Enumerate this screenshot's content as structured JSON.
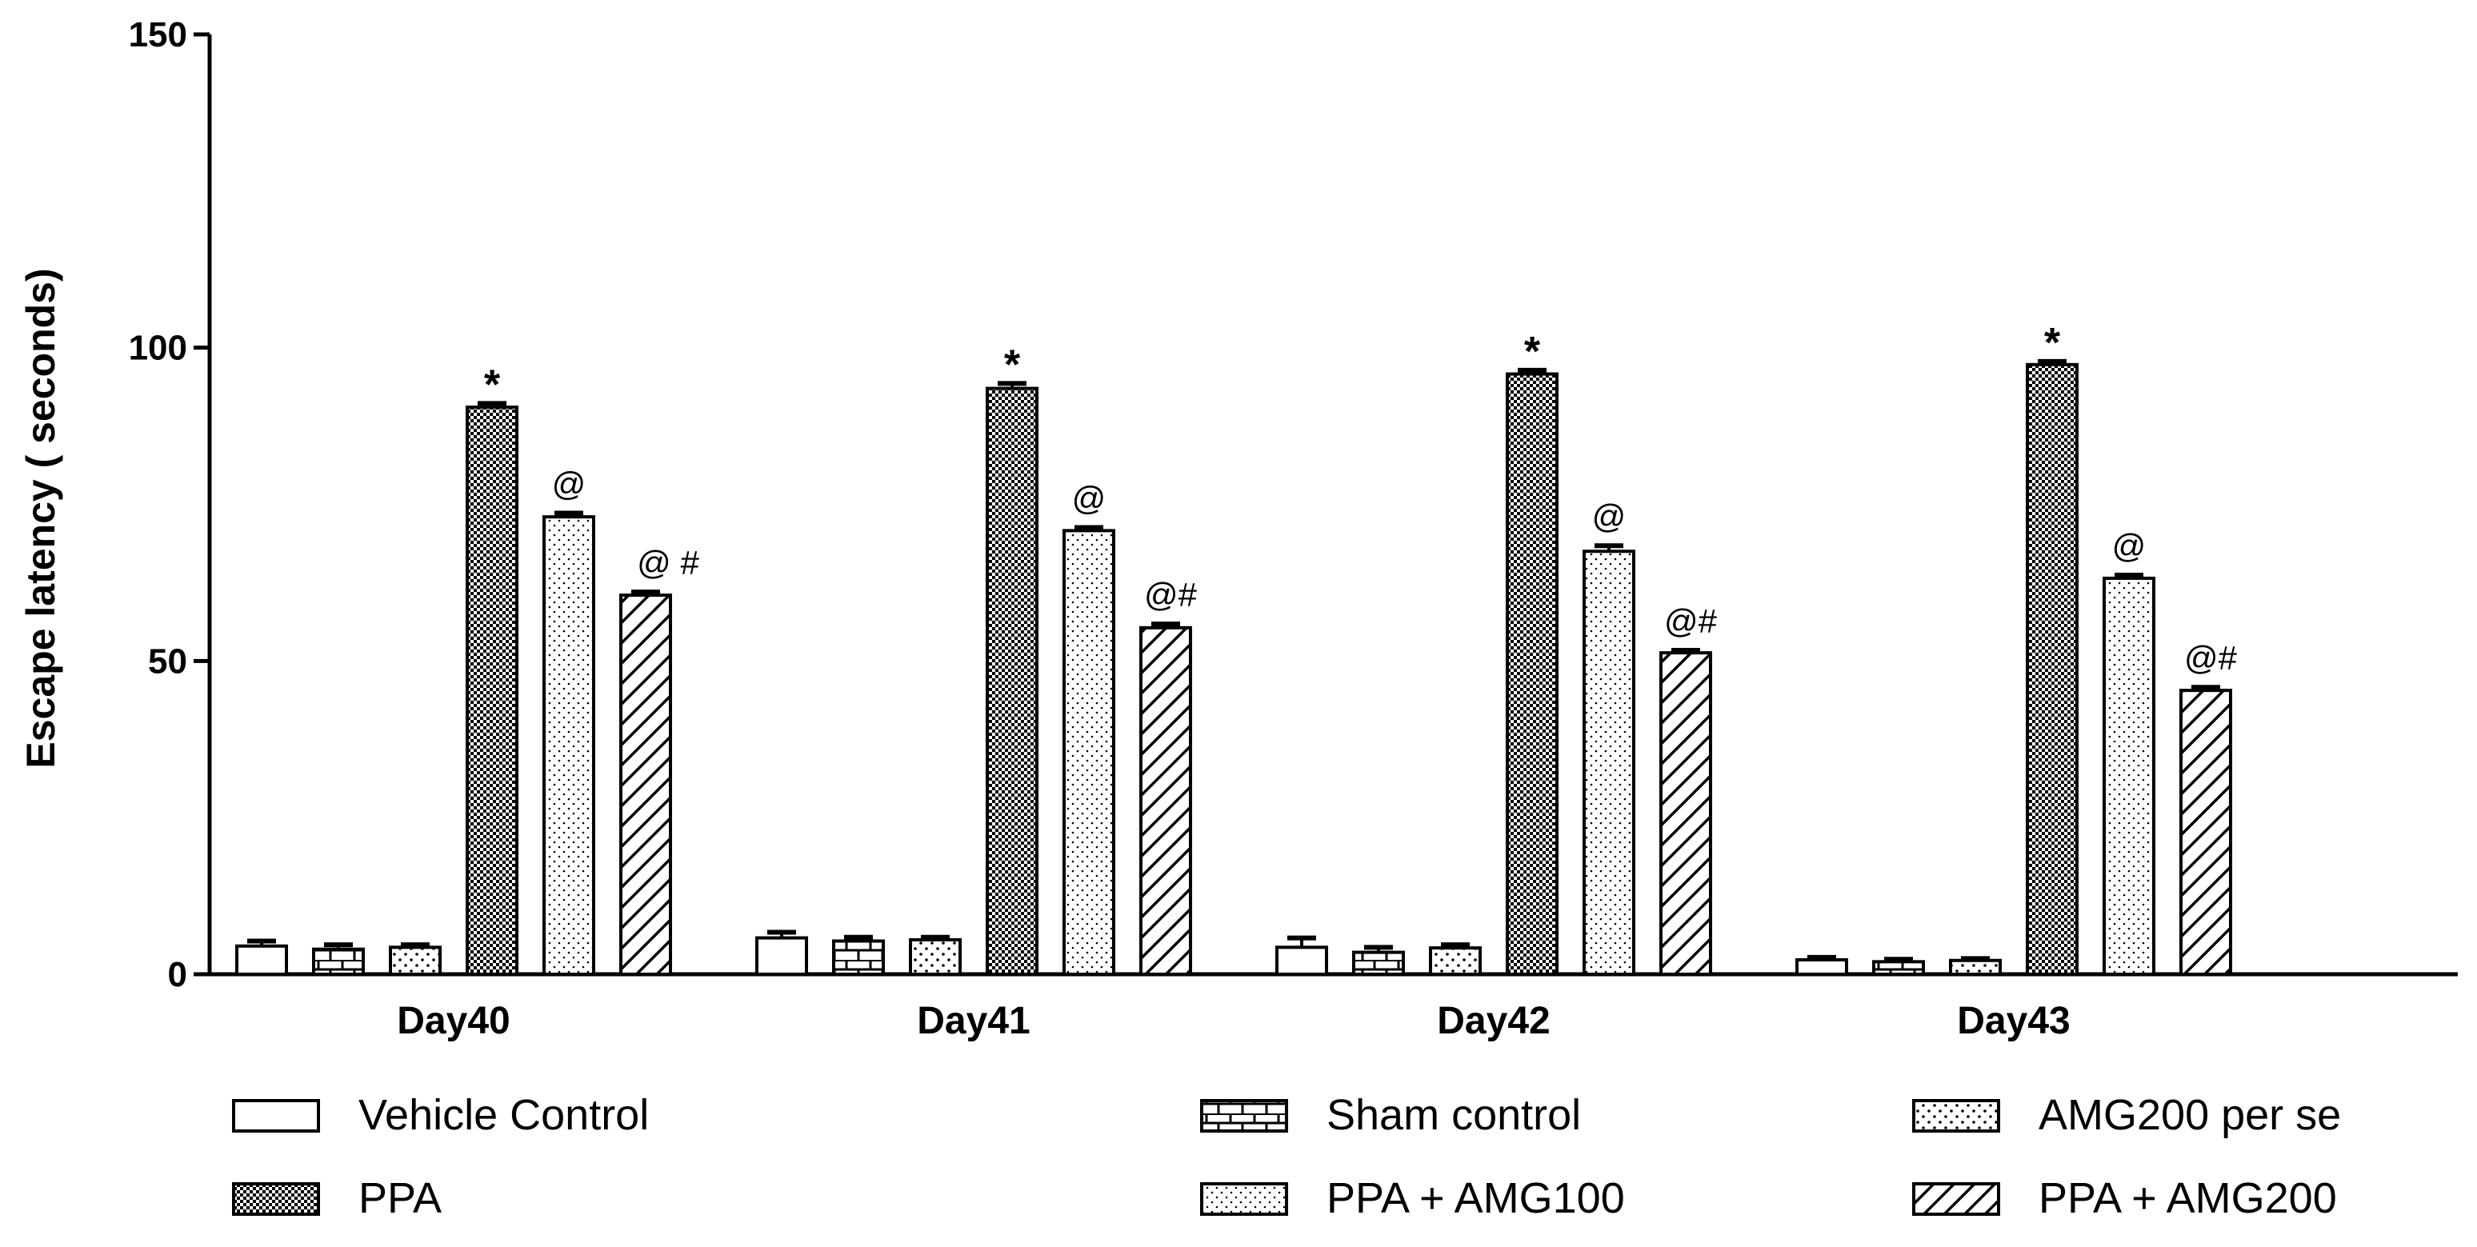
{
  "chart_data": {
    "type": "bar",
    "title": "",
    "xlabel": "",
    "ylabel": "Escape latency ( seconds)",
    "ylim": [
      0,
      150
    ],
    "yticks": [
      0,
      50,
      100,
      150
    ],
    "grid": false,
    "legend_position": "bottom",
    "categories": [
      "Day40",
      "Day41",
      "Day42",
      "Day43"
    ],
    "series": [
      {
        "name": "Vehicle Control",
        "pattern": "empty",
        "values": [
          4.5,
          5.8,
          4.3,
          2.3
        ],
        "errors": [
          0.8,
          0.9,
          1.5,
          0.4
        ],
        "annotations": [
          "",
          "",
          "",
          ""
        ]
      },
      {
        "name": "Sham control",
        "pattern": "brick",
        "values": [
          4.0,
          5.3,
          3.5,
          2.0
        ],
        "errors": [
          0.7,
          0.6,
          0.8,
          0.4
        ],
        "annotations": [
          "",
          "",
          "",
          ""
        ]
      },
      {
        "name": "AMG200 per se",
        "pattern": "sparse-dots",
        "values": [
          4.3,
          5.5,
          4.2,
          2.2
        ],
        "errors": [
          0.4,
          0.4,
          0.5,
          0.3
        ],
        "annotations": [
          "",
          "",
          "",
          ""
        ]
      },
      {
        "name": "PPA",
        "pattern": "checker",
        "values": [
          90.5,
          93.5,
          95.8,
          97.3
        ],
        "errors": [
          0.6,
          0.8,
          0.6,
          0.5
        ],
        "annotations": [
          "*",
          "*",
          "*",
          "*"
        ]
      },
      {
        "name": "PPA + AMG100",
        "pattern": "fine-dots",
        "values": [
          73.0,
          70.8,
          67.5,
          63.2
        ],
        "errors": [
          0.6,
          0.5,
          0.9,
          0.5
        ],
        "annotations": [
          "@",
          "@",
          "@",
          "@"
        ]
      },
      {
        "name": "PPA + AMG200",
        "pattern": "diagonal",
        "values": [
          60.5,
          55.3,
          51.3,
          45.3
        ],
        "errors": [
          0.5,
          0.6,
          0.4,
          0.5
        ],
        "annotations": [
          "@ #",
          "@#",
          "@#",
          "@#"
        ]
      }
    ]
  }
}
